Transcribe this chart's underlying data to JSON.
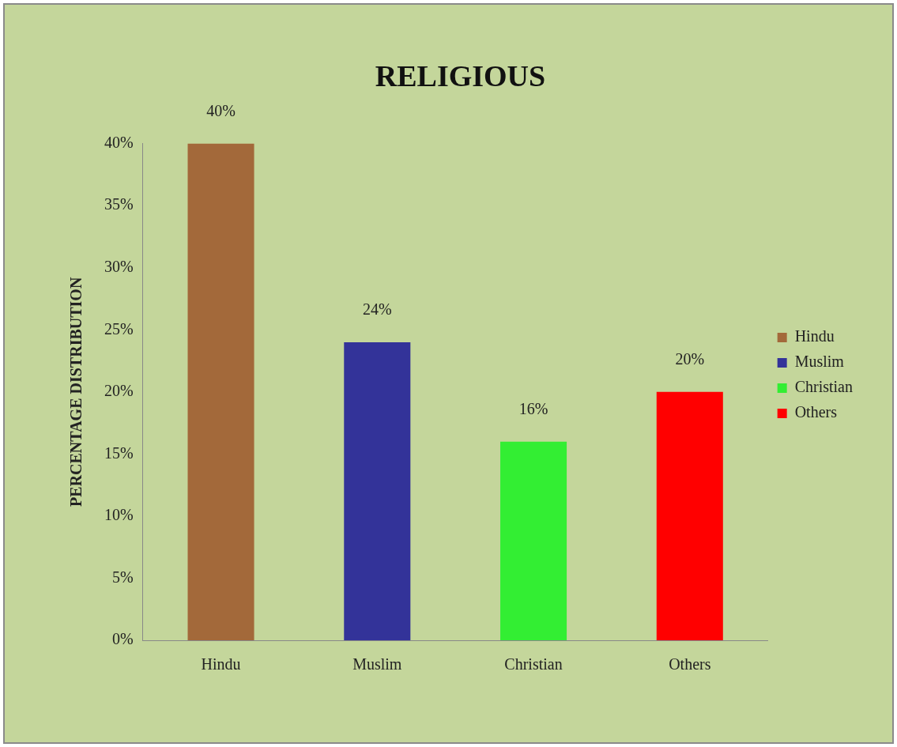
{
  "chart_data": {
    "type": "bar",
    "title": "RELIGIOUS",
    "ylabel": "PERCENTAGE DISTRIBUTION",
    "categories": [
      "Hindu",
      "Muslim",
      "Christian",
      "Others"
    ],
    "series": [
      {
        "name": "Hindu",
        "color": "#a3693a",
        "values": [
          40,
          null,
          null,
          null
        ],
        "value_labels": [
          "40%",
          null,
          null,
          null
        ]
      },
      {
        "name": "Muslim",
        "color": "#333399",
        "values": [
          null,
          24,
          null,
          null
        ],
        "value_labels": [
          null,
          "24%",
          null,
          null
        ]
      },
      {
        "name": "Christian",
        "color": "#33ee33",
        "values": [
          null,
          null,
          16,
          null
        ],
        "value_labels": [
          null,
          null,
          "16%",
          null
        ]
      },
      {
        "name": "Others",
        "color": "#ff0000",
        "values": [
          null,
          null,
          null,
          20
        ],
        "value_labels": [
          null,
          null,
          null,
          "20%"
        ]
      }
    ],
    "ylim": [
      0,
      40
    ],
    "yticks": [
      {
        "value": 0,
        "label": "0%"
      },
      {
        "value": 5,
        "label": "5%"
      },
      {
        "value": 10,
        "label": "10%"
      },
      {
        "value": 15,
        "label": "15%"
      },
      {
        "value": 20,
        "label": "20%"
      },
      {
        "value": 25,
        "label": "25%"
      },
      {
        "value": 30,
        "label": "30%"
      },
      {
        "value": 35,
        "label": "35%"
      },
      {
        "value": 40,
        "label": "40%"
      }
    ],
    "legend": "right"
  }
}
